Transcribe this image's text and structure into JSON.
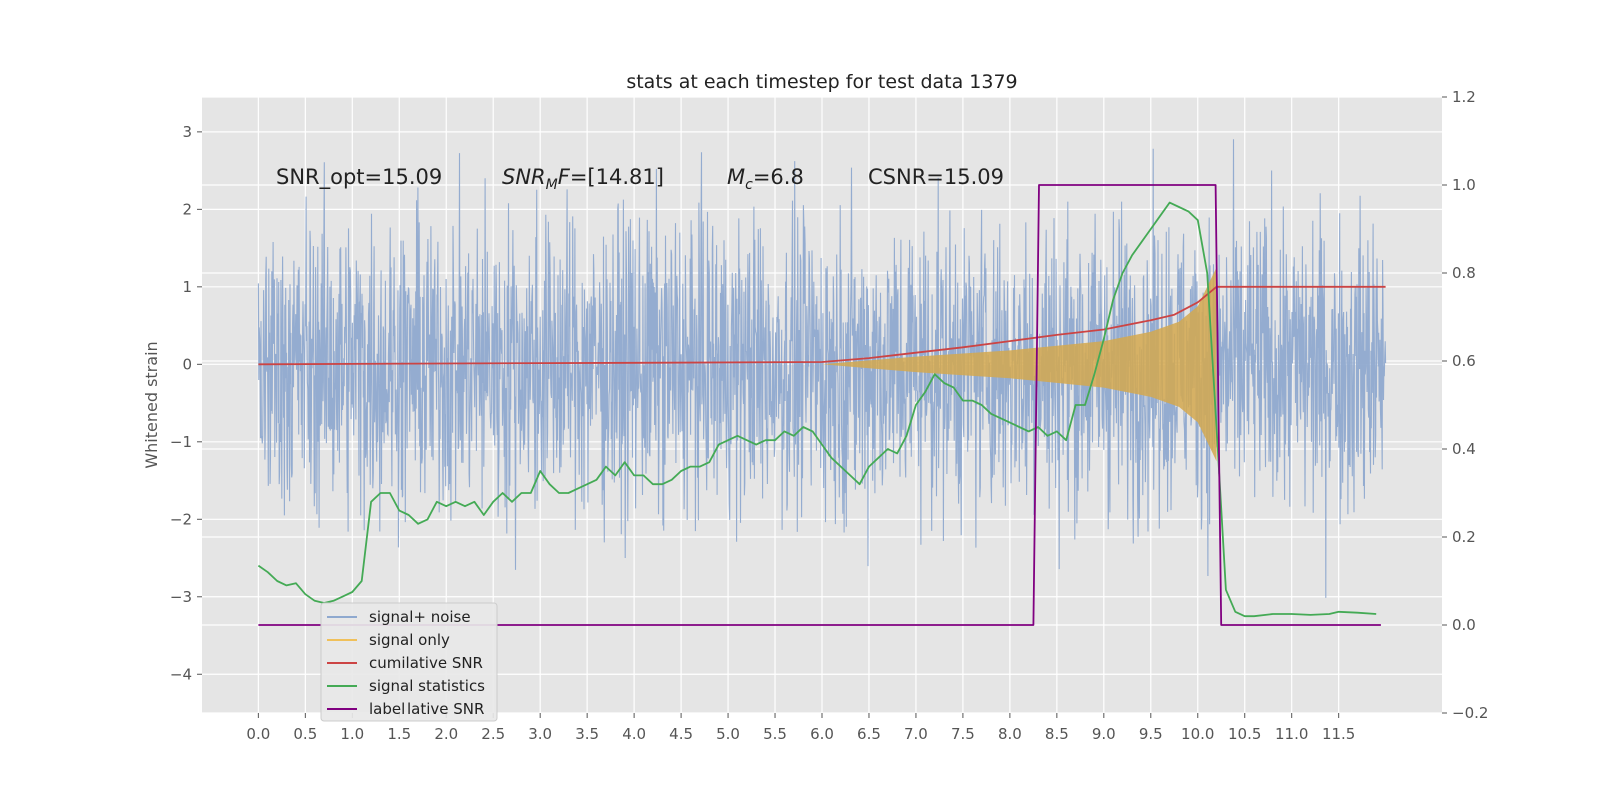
{
  "chart_data": {
    "type": "line",
    "title": "stats at each timestep for test data 1379",
    "ylabel_left": "Whitened strain",
    "xlim": [
      -0.6,
      12.6
    ],
    "ylim_left": [
      -4.5,
      3.45
    ],
    "ylim_right": [
      -0.2,
      1.2
    ],
    "grid": true,
    "legend_placement": "lower-left",
    "x_ticks": [
      "0.0",
      "0.5",
      "1.0",
      "1.5",
      "2.0",
      "2.5",
      "3.0",
      "3.5",
      "4.0",
      "4.5",
      "5.0",
      "5.5",
      "6.0",
      "6.5",
      "7.0",
      "7.5",
      "8.0",
      "8.5",
      "9.0",
      "9.5",
      "10.0",
      "10.5",
      "11.0",
      "11.5"
    ],
    "y_ticks_left": [
      "3",
      "2",
      "1",
      "0",
      "−1",
      "−2",
      "−3",
      "−4"
    ],
    "y_ticks_right": [
      "1.2",
      "1.0",
      "0.8",
      "0.6",
      "0.4",
      "0.2",
      "0.0",
      "−0.2"
    ],
    "annotations": [
      {
        "prefix": "SNR_opt=15.09",
        "main": "",
        "sub": "",
        "suffix": ""
      },
      {
        "prefix": "",
        "main": "SNR",
        "sub": "M",
        "suffix": "F=[14.81]"
      },
      {
        "prefix": "",
        "main": "M",
        "sub": "c",
        "suffix": "=6.8"
      },
      {
        "prefix": "CSNR=15.09",
        "main": "",
        "sub": "",
        "suffix": ""
      }
    ],
    "legend": [
      {
        "label": "signal+ noise",
        "color": "#8fa9cf"
      },
      {
        "label": "signal only",
        "color": "#f0c05a"
      },
      {
        "label": "cumilative SNR",
        "color": "#cc4444"
      },
      {
        "label": "signal statistics",
        "color": "#44aa55"
      },
      {
        "label": "label",
        "color": "#800080"
      }
    ],
    "legend_ghost_text": "lative SNR",
    "series": [
      {
        "name": "signal+ noise",
        "axis": "left",
        "color": "#8fa9cf",
        "x_range": [
          0.0,
          12.0
        ],
        "envelope": [
          -1.8,
          1.8
        ],
        "extreme_range": [
          -3.5,
          3.1
        ]
      },
      {
        "name": "signal only",
        "axis": "left",
        "color": "#d4a84f",
        "envelope_x": [
          6.0,
          6.5,
          7.0,
          7.5,
          8.0,
          8.5,
          9.0,
          9.5,
          9.8,
          10.0,
          10.1,
          10.2
        ],
        "envelope_y": [
          0.0,
          0.05,
          0.1,
          0.14,
          0.18,
          0.24,
          0.3,
          0.42,
          0.55,
          0.75,
          1.0,
          1.25
        ]
      },
      {
        "name": "cumilative SNR",
        "axis": "left",
        "color": "#cc4444",
        "x": [
          0.0,
          2.0,
          4.0,
          6.0,
          6.5,
          7.0,
          7.5,
          8.0,
          8.5,
          9.0,
          9.5,
          9.75,
          10.0,
          10.2,
          12.0
        ],
        "y": [
          0.0,
          0.01,
          0.02,
          0.03,
          0.08,
          0.15,
          0.22,
          0.3,
          0.38,
          0.45,
          0.57,
          0.64,
          0.8,
          1.0,
          1.0
        ]
      },
      {
        "name": "signal statistics",
        "axis": "right",
        "color": "#44aa55",
        "x": [
          0.0,
          0.1,
          0.2,
          0.3,
          0.4,
          0.5,
          0.6,
          0.7,
          0.8,
          0.9,
          1.0,
          1.1,
          1.2,
          1.3,
          1.4,
          1.5,
          1.6,
          1.7,
          1.8,
          1.9,
          2.0,
          2.1,
          2.2,
          2.3,
          2.4,
          2.5,
          2.6,
          2.7,
          2.8,
          2.9,
          3.0,
          3.1,
          3.2,
          3.3,
          3.4,
          3.5,
          3.6,
          3.7,
          3.8,
          3.9,
          4.0,
          4.1,
          4.2,
          4.3,
          4.4,
          4.5,
          4.6,
          4.7,
          4.8,
          4.9,
          5.0,
          5.1,
          5.2,
          5.3,
          5.4,
          5.5,
          5.6,
          5.7,
          5.8,
          5.9,
          6.0,
          6.1,
          6.2,
          6.3,
          6.4,
          6.5,
          6.6,
          6.7,
          6.8,
          6.9,
          7.0,
          7.1,
          7.2,
          7.3,
          7.4,
          7.5,
          7.6,
          7.7,
          7.8,
          7.9,
          8.0,
          8.1,
          8.2,
          8.3,
          8.4,
          8.5,
          8.6,
          8.7,
          8.8,
          8.9,
          9.0,
          9.1,
          9.2,
          9.3,
          9.4,
          9.5,
          9.6,
          9.7,
          9.8,
          9.9,
          10.0,
          10.1,
          10.2,
          10.3,
          10.4,
          10.5,
          10.6,
          10.8,
          11.0,
          11.2,
          11.4,
          11.5,
          11.7,
          11.9
        ],
        "y": [
          0.135,
          0.12,
          0.1,
          0.09,
          0.095,
          0.07,
          0.055,
          0.05,
          0.055,
          0.065,
          0.075,
          0.1,
          0.28,
          0.3,
          0.3,
          0.26,
          0.25,
          0.23,
          0.24,
          0.28,
          0.27,
          0.28,
          0.27,
          0.28,
          0.25,
          0.28,
          0.3,
          0.28,
          0.3,
          0.3,
          0.35,
          0.32,
          0.3,
          0.3,
          0.31,
          0.32,
          0.33,
          0.36,
          0.34,
          0.37,
          0.34,
          0.34,
          0.32,
          0.32,
          0.33,
          0.35,
          0.36,
          0.36,
          0.37,
          0.41,
          0.42,
          0.43,
          0.42,
          0.41,
          0.42,
          0.42,
          0.44,
          0.43,
          0.45,
          0.44,
          0.41,
          0.38,
          0.36,
          0.34,
          0.32,
          0.36,
          0.38,
          0.4,
          0.39,
          0.43,
          0.5,
          0.53,
          0.57,
          0.55,
          0.54,
          0.51,
          0.51,
          0.5,
          0.48,
          0.47,
          0.46,
          0.45,
          0.44,
          0.45,
          0.43,
          0.44,
          0.42,
          0.5,
          0.5,
          0.57,
          0.65,
          0.74,
          0.8,
          0.84,
          0.87,
          0.9,
          0.93,
          0.96,
          0.95,
          0.94,
          0.92,
          0.8,
          0.45,
          0.08,
          0.03,
          0.02,
          0.02,
          0.025,
          0.025,
          0.023,
          0.025,
          0.03,
          0.028,
          0.025
        ]
      },
      {
        "name": "label",
        "axis": "right",
        "color": "#800080",
        "x": [
          0.0,
          8.25,
          8.31,
          10.19,
          10.25,
          11.95
        ],
        "y": [
          0.0,
          0.0,
          1.0,
          1.0,
          0.0,
          0.0
        ]
      }
    ]
  }
}
